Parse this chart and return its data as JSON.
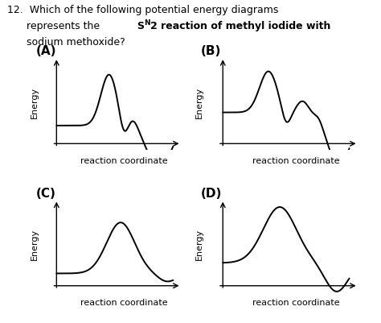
{
  "labels": [
    "(A)",
    "(B)",
    "(C)",
    "(D)"
  ],
  "xlabel": "reaction coordinate",
  "ylabel": "Energy",
  "bg_color": "#ffffff",
  "line_color": "#000000",
  "label_fontsize": 11,
  "axis_label_fontsize": 8,
  "ylabel_fontsize": 8,
  "title_line1": "12.  Which of the following potential energy diagrams",
  "title_line2": "      represents the S",
  "title_sub": "N",
  "title_line2b": "2 reaction of methyl iodide with",
  "title_line3": "      sodium methoxide?"
}
